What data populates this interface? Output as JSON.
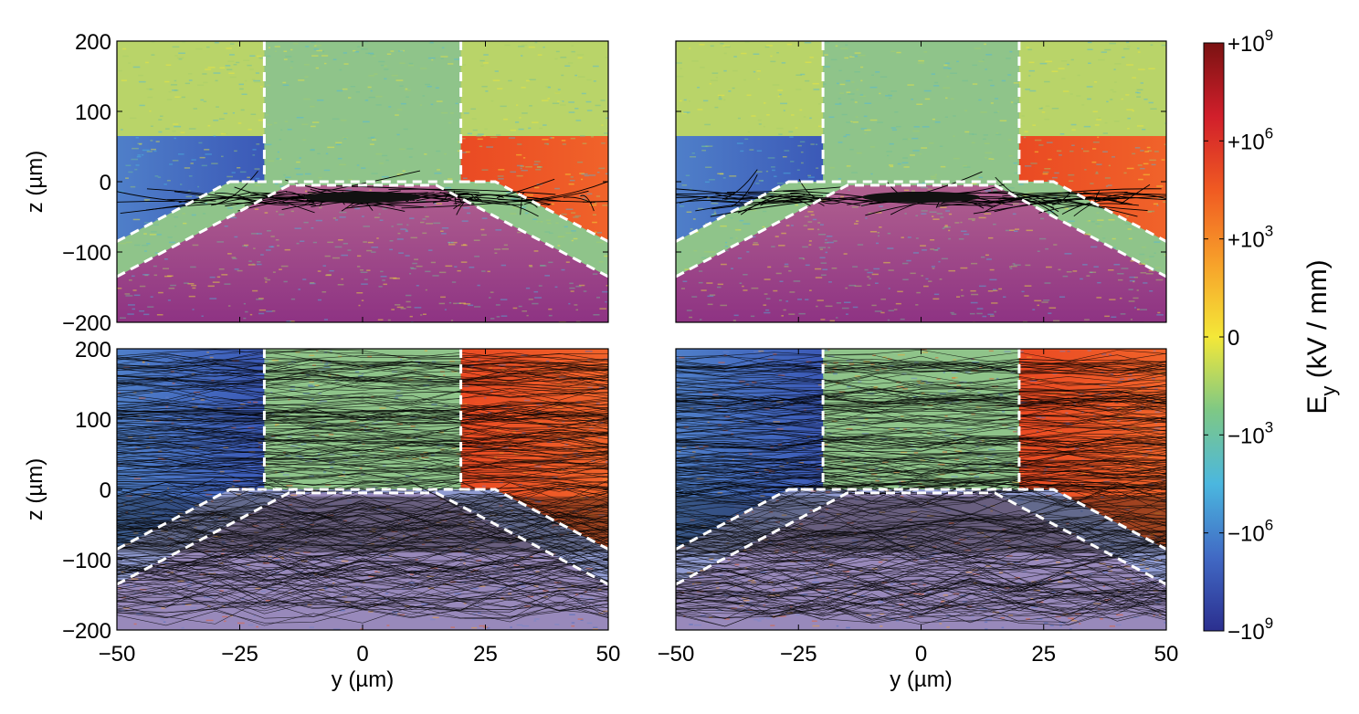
{
  "chart_data": {
    "type": "heatmap",
    "panels": [
      {
        "id": "top-left",
        "xlim": [
          -50,
          50
        ],
        "ylim": [
          -200,
          200
        ],
        "xlabel": "",
        "ylabel": "z (µm)",
        "show_xticks": false,
        "show_yticks": true,
        "trajectory_style": "sparse-near-surface"
      },
      {
        "id": "top-right",
        "xlim": [
          -50,
          50
        ],
        "ylim": [
          -200,
          200
        ],
        "xlabel": "",
        "ylabel": "",
        "show_xticks": false,
        "show_yticks": false,
        "trajectory_style": "sparse-near-surface"
      },
      {
        "id": "bottom-left",
        "xlim": [
          -50,
          50
        ],
        "ylim": [
          -200,
          200
        ],
        "xlabel": "y (µm)",
        "ylabel": "z (µm)",
        "show_xticks": true,
        "show_yticks": true,
        "trajectory_style": "dense-bulk"
      },
      {
        "id": "bottom-right",
        "xlim": [
          -50,
          50
        ],
        "ylim": [
          -200,
          200
        ],
        "xlabel": "y (µm)",
        "ylabel": "",
        "show_xticks": true,
        "show_yticks": false,
        "trajectory_style": "dense-bulk"
      }
    ],
    "x_ticks": [
      -50,
      -25,
      0,
      25,
      50
    ],
    "x_tick_labels": [
      "−50",
      "−25",
      "0",
      "25",
      "50"
    ],
    "y_ticks": [
      200,
      100,
      0,
      -100,
      -200
    ],
    "y_tick_labels": [
      "200",
      "100",
      "0",
      "−100",
      "−200"
    ],
    "electrode_outline": {
      "upper_gap_y": [
        -20,
        20
      ],
      "surface_z": 0,
      "inner_trapezoid": [
        [
          -50,
          -85
        ],
        [
          -27,
          0
        ],
        [
          27,
          0
        ],
        [
          50,
          -85
        ]
      ],
      "outer_trapezoid": [
        [
          -50,
          -135
        ],
        [
          -15,
          -5
        ],
        [
          15,
          -5
        ],
        [
          50,
          -135
        ]
      ]
    },
    "colorbar": {
      "label": "E_y (kV / mm)",
      "ticks": [
        {
          "label": "+10^9",
          "base": "+10",
          "exp": "9"
        },
        {
          "label": "+10^6",
          "base": "+10",
          "exp": "6"
        },
        {
          "label": "+10^3",
          "base": "+10",
          "exp": "3"
        },
        {
          "label": "0",
          "base": "0",
          "exp": ""
        },
        {
          "label": "−10^3",
          "base": "−10",
          "exp": "3"
        },
        {
          "label": "−10^6",
          "base": "−10",
          "exp": "6"
        },
        {
          "label": "−10^9",
          "base": "−10",
          "exp": "9"
        }
      ],
      "colors": [
        "#7a1212",
        "#d11f2b",
        "#f05a22",
        "#f7a12a",
        "#f4e838",
        "#7ec885",
        "#4bb7df",
        "#4169c4",
        "#2b2f8f"
      ]
    },
    "colors": {
      "positive_field": "#ee5228",
      "negative_field": "#3f5fbf",
      "near_zero": "#8fc48a",
      "bulk_low": "#9a3c8a",
      "trajectory": "#000000",
      "outline": "#ffffff"
    }
  }
}
